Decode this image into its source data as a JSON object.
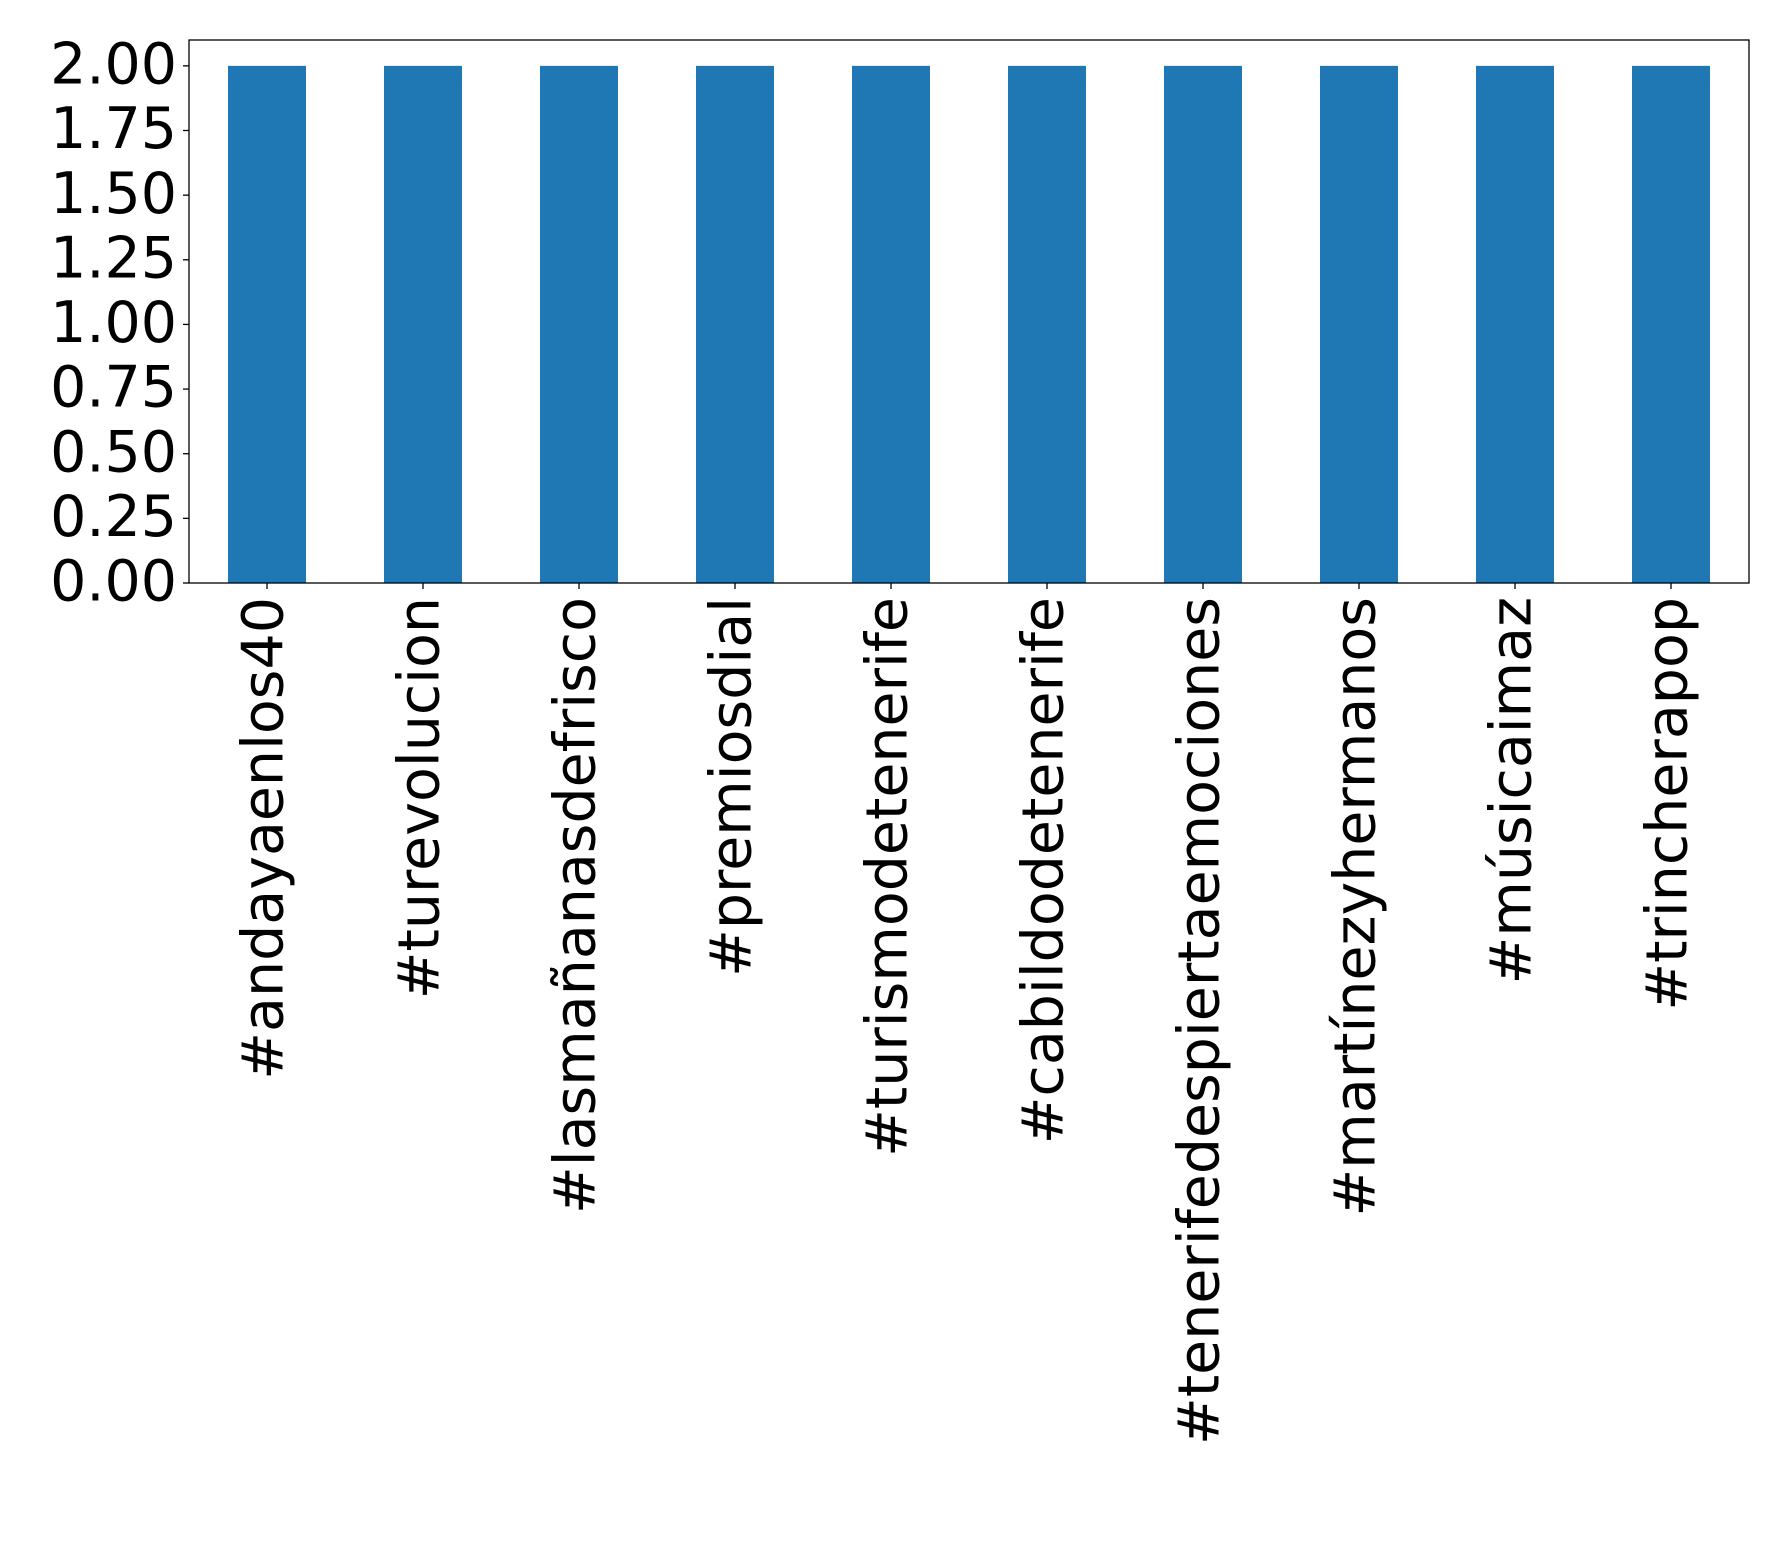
{
  "chart_data": {
    "type": "bar",
    "categories": [
      "#andayaenlos40",
      "#turevolucion",
      "#lasmañanasdefrisco",
      "#premiosdial",
      "#turismodetenerife",
      "#cabildodetenerife",
      "#tenerifedespiertaemociones",
      "#martínezyhermanos",
      "#músicaimaz",
      "#trincherapop"
    ],
    "values": [
      2,
      2,
      2,
      2,
      2,
      2,
      2,
      2,
      2,
      2
    ],
    "color": "#1f77b4",
    "ylim": [
      0,
      2.1
    ],
    "yticks": [
      {
        "value": 0,
        "label": "0.00"
      },
      {
        "value": 0.25,
        "label": "0.25"
      },
      {
        "value": 0.5,
        "label": "0.50"
      },
      {
        "value": 0.75,
        "label": "0.75"
      },
      {
        "value": 1,
        "label": "1.00"
      },
      {
        "value": 1.25,
        "label": "1.25"
      },
      {
        "value": 1.5,
        "label": "1.50"
      },
      {
        "value": 1.75,
        "label": "1.75"
      },
      {
        "value": 2,
        "label": "2.00"
      }
    ],
    "grid": false
  }
}
